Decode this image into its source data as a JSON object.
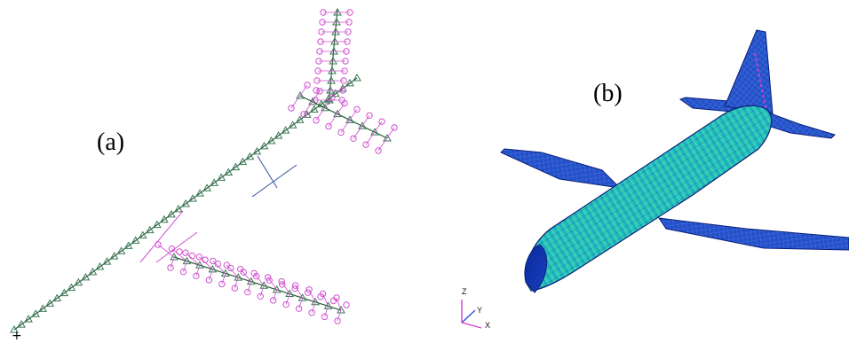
{
  "panels": [
    {
      "id": "a",
      "label": "(a)",
      "view": "stick-model"
    },
    {
      "id": "b",
      "label": "(b)",
      "view": "finite-element-mesh"
    }
  ],
  "axes": {
    "z": "Z",
    "y": "Y",
    "x": "X"
  },
  "origin_marker": "+",
  "colors": {
    "beam_nodes": "#3a7a55",
    "lumped_masses": "#d050d0",
    "mesh_fill": "#1ec2c0",
    "mesh_lines": "#1a2a9a",
    "wing_fill": "#2a52c8",
    "axis_z": "#d040d0",
    "axis_y": "#3050d0",
    "axis_x": "#d040d0"
  }
}
